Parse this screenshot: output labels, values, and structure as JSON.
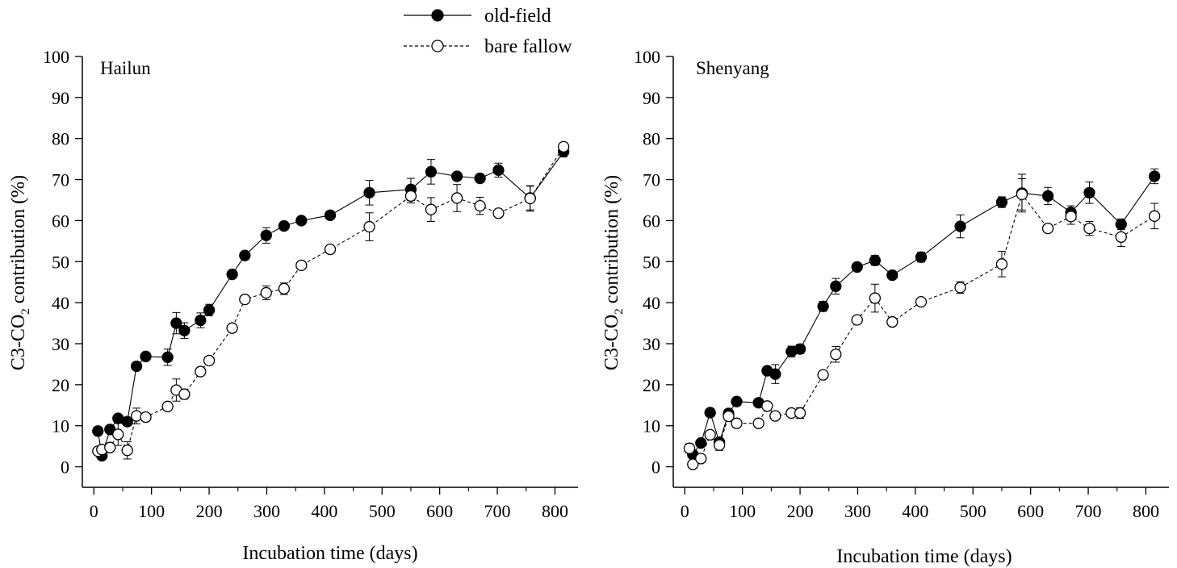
{
  "legend": {
    "position": "top-center",
    "entries": [
      {
        "label": "old-field",
        "marker": "filled-circle",
        "line": "solid"
      },
      {
        "label": "bare fallow",
        "marker": "open-circle",
        "line": "dashed"
      }
    ]
  },
  "chart_data": [
    {
      "type": "line",
      "title": "Hailun",
      "xlabel": "Incubation time (days)",
      "ylabel_main": "C3-CO",
      "ylabel_sub": "2",
      "ylabel_tail": " contribution (%)",
      "xlim": [
        -20,
        840
      ],
      "ylim": [
        -5,
        100
      ],
      "xticks": [
        0,
        100,
        200,
        300,
        400,
        500,
        600,
        700,
        800
      ],
      "yticks": [
        0,
        10,
        20,
        30,
        40,
        50,
        60,
        70,
        80,
        90,
        100
      ],
      "series": [
        {
          "name": "old-field",
          "x": [
            7,
            14,
            28,
            42,
            58,
            74,
            90,
            128,
            143,
            157,
            185,
            200,
            240,
            262,
            299,
            330,
            360,
            410,
            478,
            550,
            585,
            630,
            670,
            702,
            757,
            815
          ],
          "y": [
            8.7,
            2.7,
            9.1,
            11.8,
            11.0,
            24.5,
            26.9,
            26.7,
            35.0,
            33.2,
            35.7,
            38.2,
            46.9,
            51.5,
            56.4,
            58.7,
            60.0,
            61.3,
            66.8,
            67.6,
            71.9,
            70.8,
            70.3,
            72.3,
            65.5,
            76.8
          ],
          "err": [
            0.6,
            0.6,
            0.8,
            0.6,
            0.9,
            0.6,
            0.6,
            2.0,
            2.6,
            1.9,
            1.8,
            1.4,
            0.6,
            0.6,
            1.9,
            0.6,
            0.6,
            0.6,
            3.0,
            2.7,
            3.0,
            0.8,
            0.8,
            1.7,
            2.9,
            1.3
          ]
        },
        {
          "name": "bare fallow",
          "x": [
            7,
            14,
            28,
            42,
            58,
            74,
            90,
            128,
            143,
            157,
            185,
            200,
            240,
            262,
            299,
            330,
            360,
            410,
            478,
            550,
            585,
            630,
            670,
            702,
            757,
            815
          ],
          "y": [
            3.8,
            4.2,
            4.7,
            7.9,
            4.0,
            12.4,
            12.1,
            14.7,
            18.7,
            17.7,
            23.2,
            25.9,
            33.8,
            40.8,
            42.4,
            43.4,
            49.1,
            53.0,
            58.5,
            66.0,
            62.7,
            65.5,
            63.6,
            61.8,
            65.4,
            78.0
          ],
          "err": [
            0.7,
            0.6,
            0.6,
            2.7,
            2.1,
            1.9,
            0.7,
            0.6,
            2.7,
            1.2,
            0.7,
            0.7,
            0.8,
            0.8,
            1.7,
            1.4,
            0.7,
            0.7,
            3.4,
            1.7,
            2.9,
            3.3,
            2.1,
            0.9,
            3.1,
            0.8
          ]
        }
      ]
    },
    {
      "type": "line",
      "title": "Shenyang",
      "xlabel": "Incubation time (days)",
      "ylabel_main": "C3-CO",
      "ylabel_sub": "2",
      "ylabel_tail": " contribution (%)",
      "xlim": [
        -20,
        840
      ],
      "ylim": [
        -5,
        100
      ],
      "xticks": [
        0,
        100,
        200,
        300,
        400,
        500,
        600,
        700,
        800
      ],
      "yticks": [
        0,
        10,
        20,
        30,
        40,
        50,
        60,
        70,
        80,
        90,
        100
      ],
      "series": [
        {
          "name": "old-field",
          "x": [
            14,
            28,
            44,
            60,
            76,
            90,
            128,
            143,
            157,
            185,
            200,
            240,
            262,
            299,
            330,
            360,
            410,
            478,
            550,
            585,
            630,
            670,
            702,
            757,
            815
          ],
          "y": [
            3.0,
            5.8,
            13.2,
            6.0,
            13.0,
            15.9,
            15.6,
            23.4,
            22.6,
            28.1,
            28.7,
            39.1,
            44.0,
            48.7,
            50.3,
            46.7,
            51.1,
            58.6,
            64.5,
            66.7,
            66.0,
            62.0,
            66.8,
            59.1,
            70.8
          ],
          "err": [
            0.6,
            0.6,
            0.6,
            0.6,
            1.0,
            0.6,
            0.8,
            0.9,
            2.3,
            1.3,
            1.1,
            1.2,
            1.9,
            0.7,
            1.2,
            0.8,
            1.2,
            2.8,
            1.3,
            4.6,
            2.1,
            1.6,
            2.6,
            1.3,
            1.8
          ]
        },
        {
          "name": "bare fallow",
          "x": [
            8,
            14,
            28,
            44,
            60,
            76,
            90,
            128,
            143,
            157,
            185,
            200,
            240,
            262,
            299,
            330,
            360,
            410,
            478,
            550,
            585,
            630,
            670,
            702,
            757,
            815
          ],
          "y": [
            4.5,
            0.6,
            2.0,
            7.8,
            5.3,
            12.3,
            10.6,
            10.6,
            14.8,
            12.4,
            13.1,
            13.1,
            22.4,
            27.4,
            35.8,
            41.1,
            35.3,
            40.2,
            43.7,
            49.4,
            66.4,
            58.1,
            61.0,
            58.1,
            56.0,
            61.1
          ],
          "err": [
            1.1,
            0.6,
            0.8,
            0.6,
            1.3,
            0.9,
            0.7,
            0.7,
            0.9,
            0.9,
            0.8,
            1.3,
            0.7,
            1.9,
            0.7,
            3.4,
            0.9,
            0.9,
            1.4,
            3.1,
            3.8,
            0.8,
            1.9,
            1.7,
            2.3,
            3.1
          ]
        }
      ]
    }
  ]
}
